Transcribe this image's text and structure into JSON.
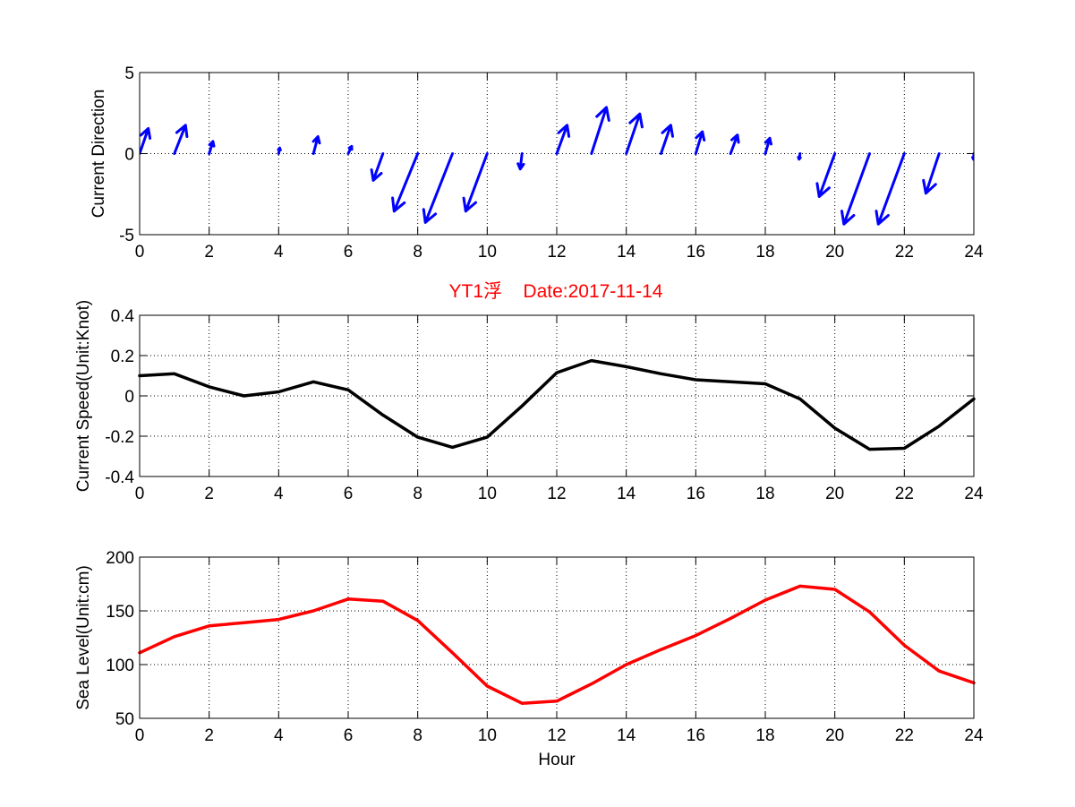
{
  "chart_data": [
    {
      "type": "quiver",
      "ylabel": "Current Direction",
      "xlabel": "",
      "xlim": [
        0,
        24
      ],
      "ylim": [
        -5,
        5
      ],
      "xticks": [
        "0",
        "2",
        "4",
        "6",
        "8",
        "10",
        "12",
        "14",
        "16",
        "18",
        "20",
        "22",
        "24"
      ],
      "yticks": [
        "-5",
        "0",
        "5"
      ],
      "grid": true,
      "color": "#0000ff",
      "x": [
        0,
        1,
        2,
        4,
        5,
        6,
        7,
        8,
        9,
        10,
        11,
        12,
        13,
        14,
        15,
        16,
        17,
        18,
        19,
        20,
        21,
        22,
        23,
        24
      ],
      "u": [
        0.25,
        0.32,
        0.11,
        0.03,
        0.13,
        0.1,
        -0.28,
        -0.68,
        -0.78,
        -0.62,
        -0.05,
        0.3,
        0.43,
        0.39,
        0.28,
        0.19,
        0.2,
        0.13,
        -0.03,
        -0.45,
        -0.74,
        -0.75,
        -0.38,
        -0.01
      ],
      "v": [
        1.55,
        1.75,
        0.75,
        0.35,
        1.05,
        0.45,
        -1.65,
        -3.55,
        -4.25,
        -3.55,
        -0.95,
        1.75,
        2.85,
        2.45,
        1.75,
        1.35,
        1.15,
        0.95,
        -0.35,
        -2.65,
        -4.35,
        -4.35,
        -2.45,
        -0.35
      ]
    },
    {
      "type": "line",
      "title": "YT1浮    Date:2017-11-14",
      "ylabel": "Current Speed(Unit:Knot)",
      "xlabel": "",
      "xlim": [
        0,
        24
      ],
      "ylim": [
        -0.4,
        0.4
      ],
      "xticks": [
        "0",
        "2",
        "4",
        "6",
        "8",
        "10",
        "12",
        "14",
        "16",
        "18",
        "20",
        "22",
        "24"
      ],
      "yticks": [
        "-0.4",
        "-0.2",
        "0",
        "0.2",
        "0.4"
      ],
      "grid": true,
      "color": "#000000",
      "x": [
        0,
        1,
        2,
        3,
        4,
        5,
        6,
        7,
        8,
        9,
        10,
        11,
        12,
        13,
        14,
        15,
        16,
        17,
        18,
        19,
        20,
        21,
        22,
        23,
        24
      ],
      "y": [
        0.1,
        0.11,
        0.045,
        0.0,
        0.02,
        0.07,
        0.03,
        -0.095,
        -0.205,
        -0.255,
        -0.205,
        -0.05,
        0.115,
        0.175,
        0.145,
        0.11,
        0.08,
        0.07,
        0.06,
        -0.015,
        -0.16,
        -0.265,
        -0.26,
        -0.15,
        -0.015
      ]
    },
    {
      "type": "line",
      "ylabel": "Sea Level(Unit:cm)",
      "xlabel": "Hour",
      "xlim": [
        0,
        24
      ],
      "ylim": [
        50,
        200
      ],
      "xticks": [
        "0",
        "2",
        "4",
        "6",
        "8",
        "10",
        "12",
        "14",
        "16",
        "18",
        "20",
        "22",
        "24"
      ],
      "yticks": [
        "50",
        "100",
        "150",
        "200"
      ],
      "grid": true,
      "color": "#ff0000",
      "x": [
        0,
        1,
        2,
        3,
        4,
        5,
        6,
        7,
        8,
        9,
        10,
        11,
        12,
        13,
        14,
        15,
        16,
        17,
        18,
        19,
        20,
        21,
        22,
        23,
        24
      ],
      "y": [
        111,
        126,
        136,
        139,
        142,
        150,
        161,
        159,
        141,
        111,
        80,
        64,
        66,
        82,
        100,
        114,
        127,
        143,
        160,
        173,
        170,
        149,
        118,
        94,
        83
      ]
    }
  ]
}
